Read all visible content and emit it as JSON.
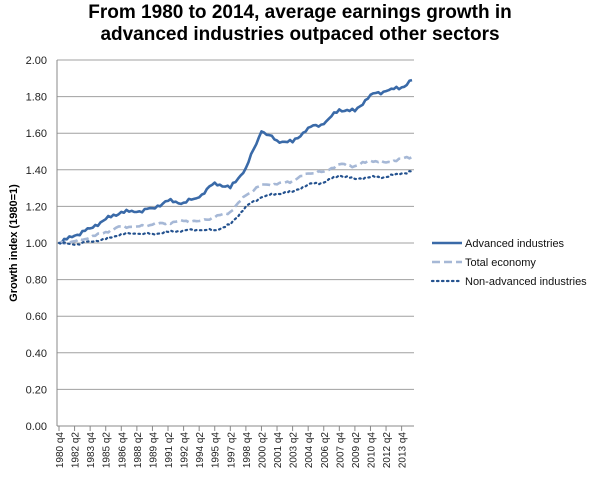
{
  "chart_data": {
    "type": "line",
    "title_lines": [
      "From 1980 to 2014, average earnings growth in",
      "advanced industries outpaced other sectors"
    ],
    "xlabel": "",
    "ylabel": "Growth index (1980=1)",
    "ylim": [
      0,
      2.0
    ],
    "yticks": [
      "0.00",
      "0.20",
      "0.40",
      "0.60",
      "0.80",
      "1.00",
      "1.20",
      "1.40",
      "1.60",
      "1.80",
      "2.00"
    ],
    "ytick_values": [
      0,
      0.2,
      0.4,
      0.6,
      0.8,
      1.0,
      1.2,
      1.4,
      1.6,
      1.8,
      2.0
    ],
    "grid": true,
    "legend_position": "right",
    "x_start": "1980 q4",
    "x_end": "2014 q4",
    "n_points": 137,
    "xtick_labels": [
      "1980 q4",
      "1982 q2",
      "1983 q4",
      "1985 q2",
      "1986 q4",
      "1988 q2",
      "1989 q4",
      "1991 q2",
      "1992 q4",
      "1994 q2",
      "1995 q4",
      "1997 q2",
      "1998 q4",
      "2000 q2",
      "2001 q4",
      "2003 q2",
      "2004 q4",
      "2006 q2",
      "2007 q4",
      "2009 q2",
      "2010 q4",
      "2012 q2",
      "2013 q4"
    ],
    "series_anchors_note": "values given at every 6th quarter (tick positions) plus final quarter; intermediate quarters interpolated",
    "anchor_index": [
      0,
      6,
      12,
      18,
      24,
      30,
      36,
      42,
      48,
      54,
      60,
      66,
      72,
      78,
      84,
      90,
      96,
      102,
      108,
      114,
      120,
      126,
      132,
      136
    ],
    "series": [
      {
        "name": "Advanced industries",
        "color": "#3a6aa8",
        "style": "solid",
        "values": [
          1.0,
          1.04,
          1.08,
          1.13,
          1.17,
          1.17,
          1.19,
          1.23,
          1.22,
          1.25,
          1.33,
          1.3,
          1.41,
          1.61,
          1.56,
          1.55,
          1.63,
          1.65,
          1.73,
          1.72,
          1.81,
          1.83,
          1.85,
          1.89
        ]
      },
      {
        "name": "Total economy",
        "color": "#a6b8d6",
        "style": "dashed",
        "values": [
          1.0,
          1.01,
          1.03,
          1.06,
          1.09,
          1.09,
          1.1,
          1.11,
          1.12,
          1.12,
          1.14,
          1.17,
          1.26,
          1.32,
          1.32,
          1.34,
          1.38,
          1.39,
          1.43,
          1.42,
          1.45,
          1.44,
          1.46,
          1.47
        ]
      },
      {
        "name": "Non-advanced industries",
        "color": "#24528f",
        "style": "dotted",
        "values": [
          1.0,
          0.99,
          1.01,
          1.02,
          1.05,
          1.05,
          1.05,
          1.06,
          1.07,
          1.07,
          1.07,
          1.1,
          1.2,
          1.25,
          1.27,
          1.28,
          1.32,
          1.33,
          1.37,
          1.35,
          1.36,
          1.36,
          1.38,
          1.39
        ]
      }
    ]
  }
}
